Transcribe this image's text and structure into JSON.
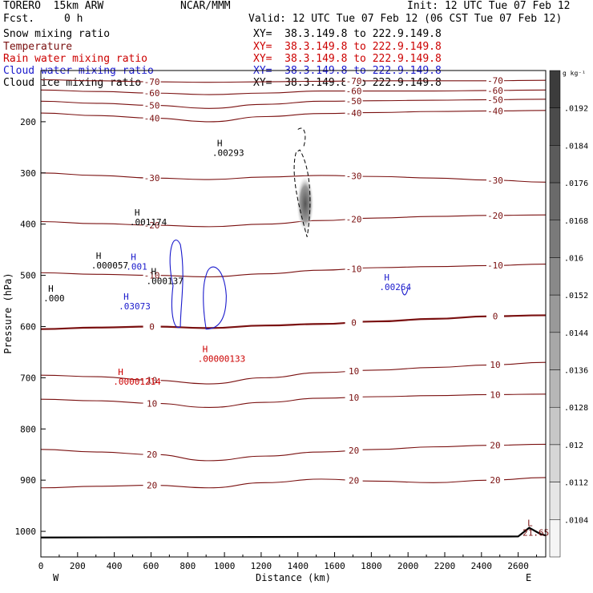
{
  "header": {
    "model": "TORERO  15km ARW",
    "center": "NCAR/MMM",
    "init": "Init: 12 UTC Tue 07 Feb 12",
    "fcst_label": "Fcst.",
    "fcst_value": "0 h",
    "valid": "Valid: 12 UTC Tue 07 Feb 12 (06 CST Tue 07 Feb 12)"
  },
  "fields": [
    {
      "name": "Snow mixing ratio",
      "xy": "XY=  38.3.149.8 to 222.9.149.8",
      "color": "#000000",
      "xy_color": "#000000"
    },
    {
      "name": "Temperature",
      "xy": "XY=  38.3.149.8 to 222.9.149.8",
      "color": "#7a1010",
      "xy_color": "#cc0000"
    },
    {
      "name": "Rain water mixing ratio",
      "xy": "XY=  38.3.149.8 to 222.9.149.8",
      "color": "#cc0000",
      "xy_color": "#cc0000"
    },
    {
      "name": "Cloud water mixing ratio",
      "xy": "XY=  38.3.149.8 to 222.9.149.8",
      "color": "#1a1acc",
      "xy_color": "#1a1acc"
    },
    {
      "name": "Cloud ice mixing ratio",
      "xy": "XY=  38.3.149.8 to 222.9.149.8",
      "color": "#000000",
      "xy_color": "#000000"
    }
  ],
  "chart_data": {
    "type": "contour cross-section",
    "xlabel": "Distance (km)",
    "ylabel": "Pressure (hPa)",
    "xlim": [
      0,
      2750
    ],
    "ylim": [
      1050,
      100
    ],
    "x_ticks": [
      0,
      200,
      400,
      600,
      800,
      1000,
      1200,
      1400,
      1600,
      1800,
      2000,
      2200,
      2400,
      2600
    ],
    "y_ticks": [
      200,
      300,
      400,
      500,
      600,
      700,
      800,
      900,
      1000
    ],
    "x_end_labels": {
      "left": "W",
      "right": "E"
    },
    "colorbar": {
      "unit": "g kg⁻¹",
      "ticks": [
        ".0192",
        ".0184",
        ".0176",
        ".0168",
        ".016",
        ".0152",
        ".0144",
        ".0136",
        ".0128",
        ".012",
        ".0112",
        ".0104"
      ]
    },
    "temperature_contours": [
      {
        "level": -70,
        "p": [
          118,
          120,
          122,
          123,
          122,
          121,
          120,
          120,
          120,
          119
        ]
      },
      {
        "level": -60,
        "p": [
          138,
          141,
          144,
          147,
          144,
          140,
          140,
          140,
          139,
          138
        ]
      },
      {
        "level": -50,
        "p": [
          160,
          164,
          168,
          174,
          166,
          160,
          159,
          158,
          157,
          156
        ]
      },
      {
        "level": -40,
        "p": [
          183,
          188,
          193,
          200,
          190,
          184,
          182,
          180,
          179,
          178
        ]
      },
      {
        "level": -30,
        "p": [
          300,
          305,
          310,
          313,
          308,
          305,
          307,
          310,
          314,
          318
        ]
      },
      {
        "level": -20,
        "p": [
          395,
          399,
          402,
          405,
          400,
          393,
          388,
          385,
          383,
          382
        ]
      },
      {
        "level": -10,
        "p": [
          495,
          498,
          500,
          503,
          497,
          490,
          485,
          483,
          481,
          478
        ]
      },
      {
        "level": 0,
        "p": [
          605,
          602,
          600,
          603,
          598,
          595,
          590,
          585,
          580,
          578
        ]
      },
      {
        "level": 10,
        "p": [
          695,
          698,
          705,
          712,
          700,
          690,
          685,
          680,
          675,
          670
        ]
      },
      {
        "level": 10,
        "p": [
          742,
          745,
          750,
          758,
          748,
          740,
          737,
          735,
          733,
          732
        ]
      },
      {
        "level": 20,
        "p": [
          840,
          845,
          850,
          862,
          853,
          845,
          840,
          835,
          832,
          830
        ]
      },
      {
        "level": 20,
        "p": [
          915,
          912,
          910,
          915,
          905,
          898,
          902,
          905,
          900,
          895
        ]
      }
    ],
    "maxima": [
      {
        "label": "H",
        "value": ".000",
        "x": 40,
        "p": 532,
        "field": "Snow mixing ratio"
      },
      {
        "label": "H",
        "value": ".000057",
        "x": 300,
        "p": 468,
        "field": "Snow mixing ratio"
      },
      {
        "label": "H",
        "value": ".001174",
        "x": 510,
        "p": 383,
        "field": "Cloud ice mixing ratio"
      },
      {
        "label": "H",
        "value": ".000137",
        "x": 600,
        "p": 498,
        "field": "Snow mixing ratio"
      },
      {
        "label": "H",
        "value": ".00293",
        "x": 960,
        "p": 248,
        "field": "Cloud ice mixing ratio"
      },
      {
        "label": "H",
        "value": ".001",
        "x": 490,
        "p": 470,
        "field": "Cloud water mixing ratio"
      },
      {
        "label": "H",
        "value": ".03073",
        "x": 450,
        "p": 548,
        "field": "Cloud water mixing ratio"
      },
      {
        "label": "H",
        "value": ".00264",
        "x": 1870,
        "p": 510,
        "field": "Cloud water mixing ratio"
      },
      {
        "label": "H",
        "value": ".00000133",
        "x": 880,
        "p": 650,
        "field": "Rain water mixing ratio"
      },
      {
        "label": "H",
        "value": ".00001214",
        "x": 420,
        "p": 695,
        "field": "Rain water mixing ratio"
      },
      {
        "label": "L",
        "value": "21.65",
        "x": 2650,
        "p": 990,
        "field": "Temperature"
      }
    ]
  }
}
